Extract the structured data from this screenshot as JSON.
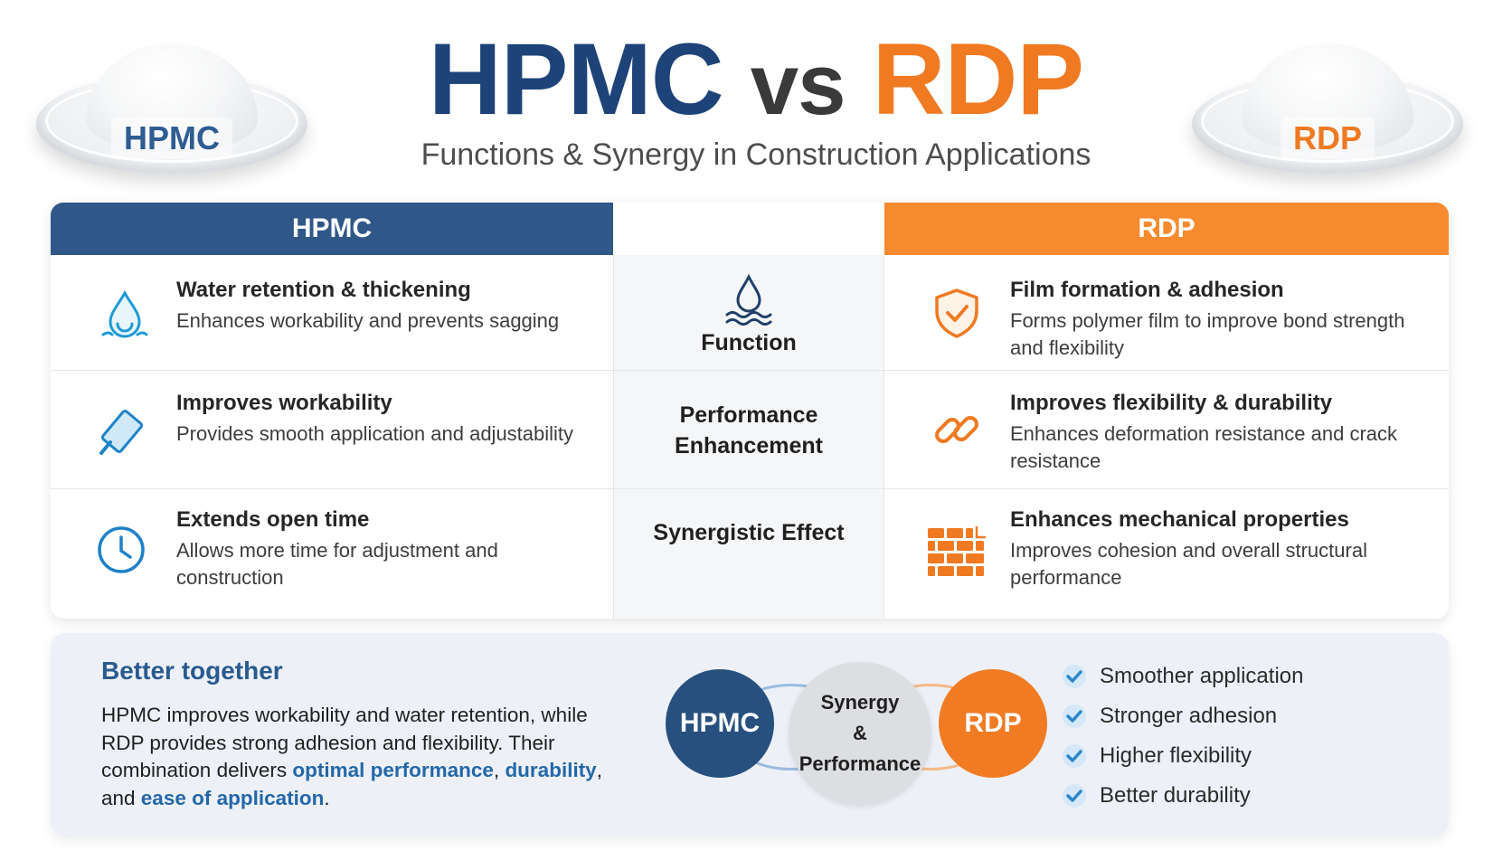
{
  "header": {
    "title_left": "HPMC",
    "title_vs": "vs",
    "title_right": "RDP",
    "subtitle": "Functions & Synergy in Construction Applications",
    "dish_left_label": "HPMC",
    "dish_right_label": "RDP"
  },
  "table": {
    "head_left": "HPMC",
    "head_right": "RDP",
    "rows": [
      {
        "left": {
          "title": "Water retention & thickening",
          "desc": "Enhances workability and prevents sagging",
          "icon": "water-drop-icon"
        },
        "middle": "Function",
        "middle_icon": "water-drop-waves-icon",
        "right": {
          "title": "Film formation & adhesion",
          "desc": "Forms polymer film to improve bond strength and flexibility",
          "icon": "shield-check-icon"
        }
      },
      {
        "left": {
          "title": "Improves workability",
          "desc": "Provides smooth application and adjustability",
          "icon": "trowel-icon"
        },
        "middle": "Performance Enhancement",
        "right": {
          "title": "Improves flexibility & durability",
          "desc": "Enhances deformation resistance and crack resistance",
          "icon": "chain-link-icon"
        }
      },
      {
        "left": {
          "title": "Extends open time",
          "desc": "Allows more time for adjustment and construction",
          "icon": "clock-icon"
        },
        "middle": "Synergistic Effect",
        "right": {
          "title": "Enhances mechanical properties",
          "desc": "Improves cohesion and overall structural performance",
          "icon": "brick-wall-icon"
        }
      }
    ]
  },
  "together": {
    "title": "Better together",
    "text_1": "HPMC improves workability and water retention, while RDP provides strong adhesion and flexibility. Their combination delivers ",
    "hl_1": "optimal performance",
    "text_2": ", ",
    "hl_2": "durability",
    "text_3": ", and ",
    "hl_3": "ease of application",
    "text_4": ".",
    "circle_left": "HPMC",
    "circle_right": "RDP",
    "circle_mid_1": "Synergy",
    "circle_mid_2": "&",
    "circle_mid_3": "Performance",
    "checks": [
      "Smoother application",
      "Stronger adhesion",
      "Higher flexibility",
      "Better durability"
    ]
  },
  "colors": {
    "hpmc_blue": "#2f5889",
    "rdp_orange": "#f58a2e",
    "accent_blue": "#2467a8"
  }
}
